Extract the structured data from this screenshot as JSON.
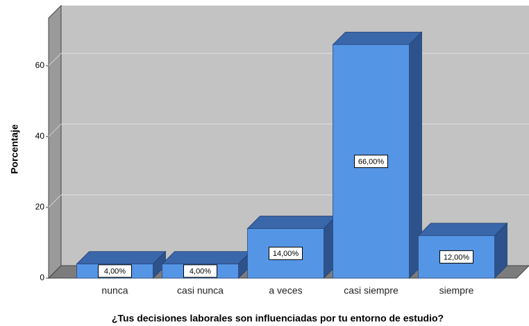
{
  "chart_data": {
    "type": "bar",
    "x_label": "¿Tus decisiones laborales son influenciadas por tu entorno de estudio?",
    "y_label": "Porcentaje",
    "categories": [
      "nunca",
      "casi nunca",
      "a veces",
      "casi siempre",
      "siempre"
    ],
    "values": [
      4,
      4,
      14,
      66,
      12
    ],
    "value_labels": [
      "4,00%",
      "4,00%",
      "14,00%",
      "66,00%",
      "12,00%"
    ],
    "color": "#5595e5",
    "ylim": [
      0,
      73.5
    ],
    "yticks": [
      0,
      20,
      40,
      60
    ],
    "grid": true
  }
}
